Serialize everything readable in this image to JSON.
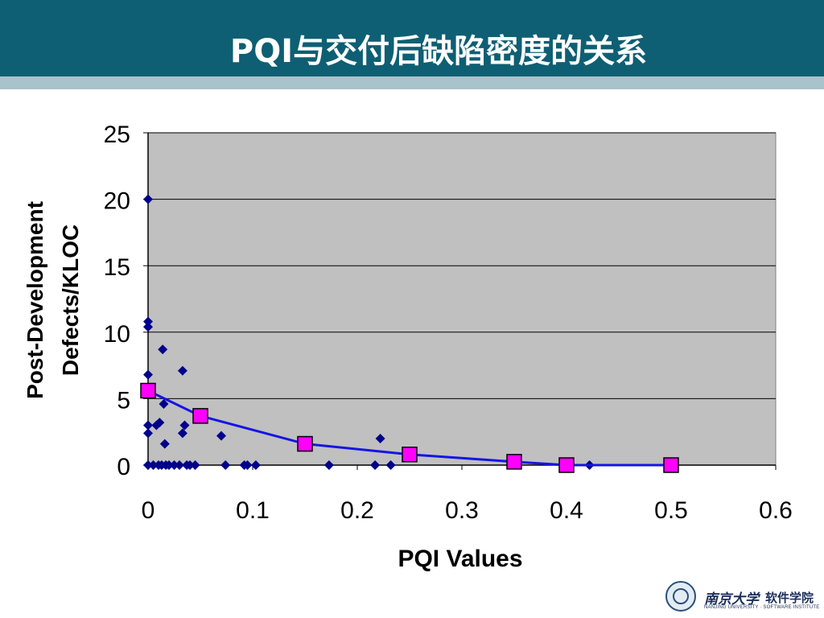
{
  "slide": {
    "title": "PQI与交付后缺陷密度的关系"
  },
  "chart_data": {
    "type": "scatter",
    "xlabel": "PQI Values",
    "ylabel_line1": "Post-Development",
    "ylabel_line2": "Defects/KLOC",
    "xlim": [
      0,
      0.6
    ],
    "ylim": [
      0,
      25
    ],
    "xticks": [
      "0",
      "0.1",
      "0.2",
      "0.3",
      "0.4",
      "0.5",
      "0.6"
    ],
    "yticks": [
      "0",
      "5",
      "10",
      "15",
      "20",
      "25"
    ],
    "grid": "horizontal",
    "plot_background": "#c0c0c0",
    "series": [
      {
        "marker": "diamond",
        "color": "#00008b",
        "points": [
          [
            0,
            20
          ],
          [
            0,
            10.8
          ],
          [
            0,
            10.4
          ],
          [
            0,
            6.8
          ],
          [
            0,
            3
          ],
          [
            0,
            2.4
          ],
          [
            0,
            0
          ],
          [
            0.005,
            0
          ],
          [
            0.008,
            3
          ],
          [
            0.01,
            0
          ],
          [
            0.011,
            3.2
          ],
          [
            0.013,
            0
          ],
          [
            0.014,
            8.7
          ],
          [
            0.015,
            4.6
          ],
          [
            0.016,
            1.6
          ],
          [
            0.017,
            0
          ],
          [
            0.02,
            0
          ],
          [
            0.025,
            0
          ],
          [
            0.03,
            0
          ],
          [
            0.033,
            7.1
          ],
          [
            0.033,
            2.4
          ],
          [
            0.035,
            3
          ],
          [
            0.037,
            0
          ],
          [
            0.04,
            0
          ],
          [
            0.045,
            0
          ],
          [
            0.07,
            2.2
          ],
          [
            0.074,
            0
          ],
          [
            0.092,
            0
          ],
          [
            0.095,
            0
          ],
          [
            0.103,
            0
          ],
          [
            0.173,
            0
          ],
          [
            0.217,
            0
          ],
          [
            0.222,
            2
          ],
          [
            0.232,
            0
          ],
          [
            0.422,
            0
          ]
        ]
      },
      {
        "marker": "square",
        "line": true,
        "color": "#ff00ff",
        "line_color": "#1414e6",
        "points": [
          [
            0,
            5.6
          ],
          [
            0.05,
            3.7
          ],
          [
            0.15,
            1.6
          ],
          [
            0.25,
            0.8
          ],
          [
            0.35,
            0.25
          ],
          [
            0.4,
            0
          ],
          [
            0.5,
            0
          ]
        ]
      }
    ]
  },
  "logo": {
    "university_name": "南京大学",
    "institute_name": "软件学院",
    "english_name": "NANJING UNIVERSITY · SOFTWARE INSTITUTE"
  }
}
